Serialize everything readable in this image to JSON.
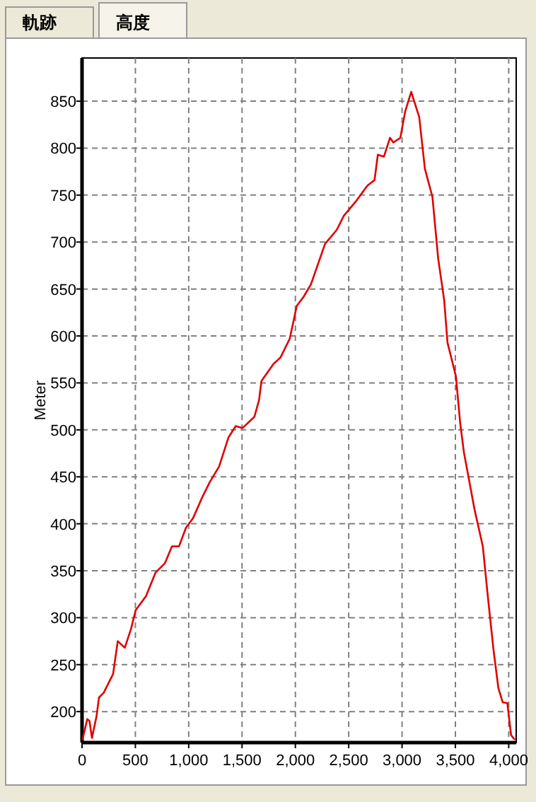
{
  "chart_data": {
    "type": "line",
    "ylabel": "Meter",
    "annotations": [
      "軌跡",
      "高度"
    ],
    "xlim": [
      0,
      4070
    ],
    "ylim": [
      167,
      896
    ],
    "xticks": [
      0,
      500,
      {
        "value": 1000,
        "label": "1,000"
      },
      {
        "value": 1500,
        "label": "1,500"
      },
      {
        "value": 2000,
        "label": "2,000"
      },
      {
        "value": 2500,
        "label": "2,500"
      },
      {
        "value": 3000,
        "label": "3,000"
      },
      {
        "value": 3500,
        "label": "3,500"
      },
      {
        "value": 4000,
        "label": "4,000"
      }
    ],
    "yticks": [
      200,
      250,
      300,
      350,
      400,
      450,
      500,
      550,
      600,
      650,
      700,
      750,
      800,
      850
    ],
    "grid": true,
    "marker": "none",
    "line_style": "solid",
    "series": [
      {
        "color": "#e00000",
        "x": [
          4,
          49,
          70,
          93,
          136,
          159,
          203,
          291,
          335,
          401,
          459,
          503,
          600,
          689,
          777,
          843,
          909,
          975,
          1041,
          1130,
          1196,
          1285,
          1373,
          1440,
          1506,
          1616,
          1660,
          1682,
          1793,
          1860,
          1947,
          2013,
          2079,
          2146,
          2278,
          2388,
          2454,
          2565,
          2675,
          2742,
          2773,
          2830,
          2887,
          2918,
          2984,
          3029,
          3086,
          3161,
          3214,
          3285,
          3338,
          3395,
          3426,
          3505,
          3545,
          3580,
          3678,
          3757,
          3801,
          3858,
          3903,
          3943,
          3987,
          4022,
          4057
        ],
        "values": [
          170,
          192,
          190,
          172,
          195,
          215,
          220,
          240,
          275,
          268,
          288,
          308,
          323,
          348,
          358,
          376,
          376,
          396,
          406,
          429,
          444,
          461,
          492,
          504,
          502,
          514,
          532,
          552,
          570,
          577,
          597,
          632,
          642,
          655,
          698,
          713,
          728,
          743,
          760,
          766,
          793,
          791,
          811,
          806,
          811,
          839,
          860,
          833,
          778,
          748,
          683,
          638,
          593,
          557,
          507,
          476,
          416,
          376,
          326,
          265,
          225,
          210,
          209,
          175,
          170
        ]
      }
    ]
  }
}
